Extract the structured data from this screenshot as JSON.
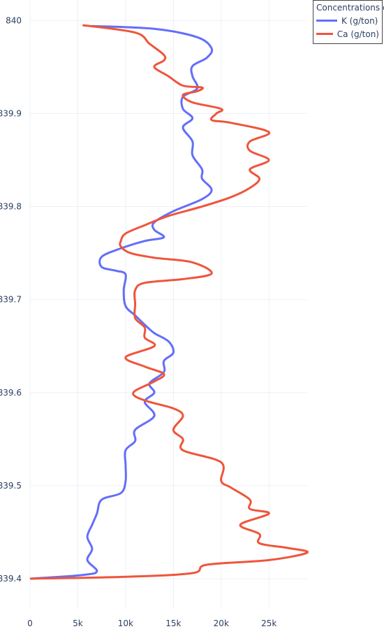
{
  "chart_data": {
    "type": "line",
    "title": "",
    "xlabel": "",
    "ylabel": "",
    "xlim": [
      0,
      29000
    ],
    "ylim": [
      839.4,
      840.007
    ],
    "x_ticks": [
      0,
      5000,
      10000,
      15000,
      20000,
      25000
    ],
    "x_tick_labels": [
      "0",
      "5k",
      "10k",
      "15k",
      "20k",
      "25k"
    ],
    "y_ticks": [
      839.4,
      839.5,
      839.6,
      839.7,
      839.8,
      839.9,
      840.0
    ],
    "y_tick_labels": [
      "839.4",
      "839.5",
      "839.6",
      "839.7",
      "839.8",
      "839.9",
      "840"
    ],
    "grid": true,
    "legend_title": "Concentrations of",
    "legend_position": "top-right",
    "series": [
      {
        "name": "K (g/ton)",
        "color": "#636efa",
        "points": [
          [
            6500,
            839.994
          ],
          [
            13000,
            839.991
          ],
          [
            17500,
            839.982
          ],
          [
            19000,
            839.97
          ],
          [
            18500,
            839.96
          ],
          [
            17000,
            839.951
          ],
          [
            17000,
            839.94
          ],
          [
            17500,
            839.927
          ],
          [
            16000,
            839.918
          ],
          [
            16000,
            839.905
          ],
          [
            17000,
            839.895
          ],
          [
            16000,
            839.885
          ],
          [
            17000,
            839.87
          ],
          [
            17000,
            839.855
          ],
          [
            18000,
            839.84
          ],
          [
            18000,
            839.83
          ],
          [
            19000,
            839.818
          ],
          [
            18000,
            839.808
          ],
          [
            15000,
            839.795
          ],
          [
            13000,
            839.783
          ],
          [
            13000,
            839.775
          ],
          [
            14000,
            839.767
          ],
          [
            12000,
            839.763
          ],
          [
            9500,
            839.755
          ],
          [
            7500,
            839.746
          ],
          [
            7500,
            839.735
          ],
          [
            9000,
            839.731
          ],
          [
            10000,
            839.727
          ],
          [
            9800,
            839.71
          ],
          [
            10000,
            839.693
          ],
          [
            11000,
            839.683
          ],
          [
            12000,
            839.673
          ],
          [
            13000,
            839.664
          ],
          [
            14500,
            839.655
          ],
          [
            15000,
            839.643
          ],
          [
            14000,
            839.634
          ],
          [
            14000,
            839.622
          ],
          [
            12500,
            839.61
          ],
          [
            13000,
            839.6
          ],
          [
            12000,
            839.59
          ],
          [
            13000,
            839.575
          ],
          [
            11000,
            839.56
          ],
          [
            11000,
            839.548
          ],
          [
            10000,
            839.538
          ],
          [
            10000,
            839.522
          ],
          [
            10000,
            839.505
          ],
          [
            9500,
            839.492
          ],
          [
            7500,
            839.485
          ],
          [
            7000,
            839.47
          ],
          [
            6500,
            839.458
          ],
          [
            6000,
            839.445
          ],
          [
            6500,
            839.432
          ],
          [
            6000,
            839.42
          ],
          [
            7000,
            839.408
          ],
          [
            5500,
            839.404
          ],
          [
            0,
            839.4
          ]
        ]
      },
      {
        "name": "Ca (g/ton)",
        "color": "#ef553b",
        "points": [
          [
            5500,
            839.995
          ],
          [
            11000,
            839.987
          ],
          [
            12500,
            839.975
          ],
          [
            14000,
            839.963
          ],
          [
            14000,
            839.957
          ],
          [
            13000,
            839.95
          ],
          [
            14500,
            839.94
          ],
          [
            16000,
            839.93
          ],
          [
            18000,
            839.928
          ],
          [
            17500,
            839.924
          ],
          [
            16000,
            839.92
          ],
          [
            17000,
            839.912
          ],
          [
            20000,
            839.905
          ],
          [
            19500,
            839.9
          ],
          [
            19000,
            839.893
          ],
          [
            21000,
            839.89
          ],
          [
            25000,
            839.88
          ],
          [
            23000,
            839.87
          ],
          [
            23000,
            839.86
          ],
          [
            25000,
            839.85
          ],
          [
            23000,
            839.84
          ],
          [
            24000,
            839.83
          ],
          [
            23000,
            839.82
          ],
          [
            21000,
            839.81
          ],
          [
            18000,
            839.8
          ],
          [
            14500,
            839.79
          ],
          [
            12000,
            839.78
          ],
          [
            10000,
            839.771
          ],
          [
            9500,
            839.763
          ],
          [
            9500,
            839.757
          ],
          [
            10500,
            839.75
          ],
          [
            13000,
            839.745
          ],
          [
            17000,
            839.74
          ],
          [
            19000,
            839.728
          ],
          [
            16000,
            839.722
          ],
          [
            12000,
            839.718
          ],
          [
            11000,
            839.71
          ],
          [
            11000,
            839.695
          ],
          [
            11000,
            839.68
          ],
          [
            12000,
            839.67
          ],
          [
            12000,
            839.659
          ],
          [
            13000,
            839.65
          ],
          [
            10000,
            839.638
          ],
          [
            12000,
            839.628
          ],
          [
            14000,
            839.62
          ],
          [
            13000,
            839.612
          ],
          [
            11000,
            839.602
          ],
          [
            11000,
            839.596
          ],
          [
            12500,
            839.59
          ],
          [
            15000,
            839.583
          ],
          [
            16000,
            839.575
          ],
          [
            15000,
            839.56
          ],
          [
            16000,
            839.55
          ],
          [
            16000,
            839.538
          ],
          [
            20000,
            839.525
          ],
          [
            20000,
            839.505
          ],
          [
            21000,
            839.498
          ],
          [
            23000,
            839.485
          ],
          [
            23000,
            839.475
          ],
          [
            25000,
            839.47
          ],
          [
            22000,
            839.458
          ],
          [
            24000,
            839.448
          ],
          [
            24000,
            839.438
          ],
          [
            27000,
            839.433
          ],
          [
            29000,
            839.428
          ],
          [
            25000,
            839.42
          ],
          [
            18500,
            839.415
          ],
          [
            17000,
            839.406
          ],
          [
            10000,
            839.402
          ],
          [
            0,
            839.4
          ]
        ]
      }
    ]
  }
}
